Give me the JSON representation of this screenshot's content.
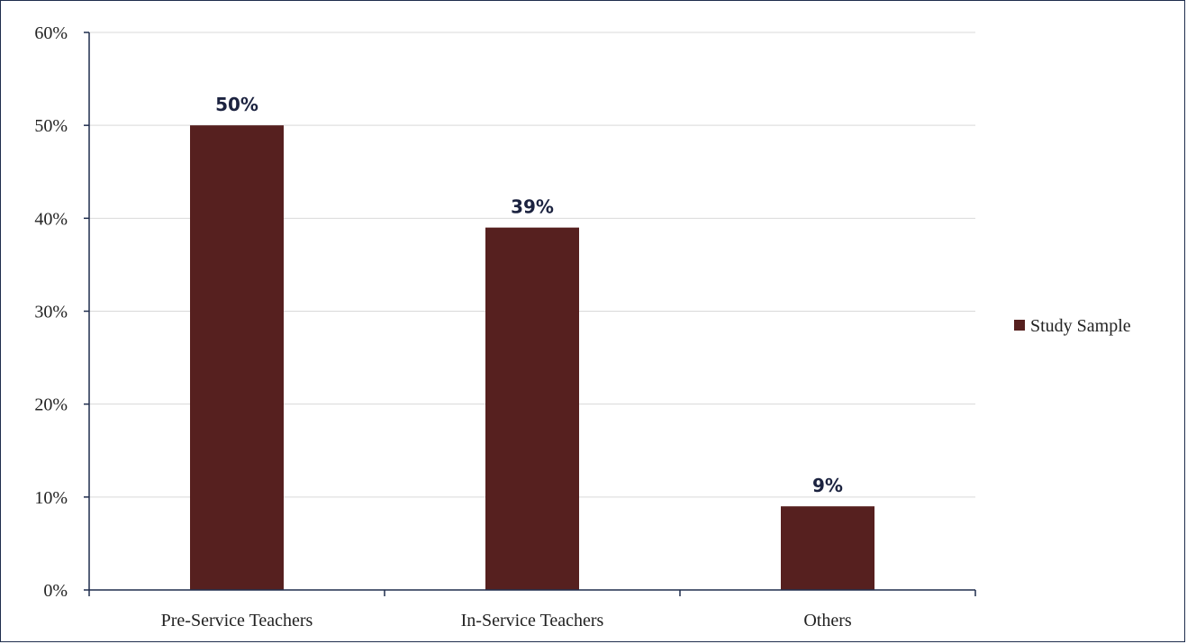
{
  "chart_data": {
    "type": "bar",
    "categories": [
      "Pre-Service Teachers",
      "In-Service Teachers",
      "Others"
    ],
    "series": [
      {
        "name": "Study Sample",
        "values": [
          50,
          39,
          9
        ],
        "color": "#56201f"
      }
    ],
    "data_labels": [
      "50%",
      "39%",
      "9%"
    ],
    "ylim": [
      0,
      60
    ],
    "y_ticks": [
      0,
      10,
      20,
      30,
      40,
      50,
      60
    ],
    "y_tick_labels": [
      "0%",
      "10%",
      "20%",
      "30%",
      "40%",
      "50%",
      "60%"
    ],
    "grid": true,
    "grid_color": "#d9d9d9",
    "axis_color": "#1f2d4d",
    "legend": {
      "placement": "right",
      "label": "Study Sample"
    },
    "title": "",
    "xlabel": "",
    "ylabel": ""
  }
}
